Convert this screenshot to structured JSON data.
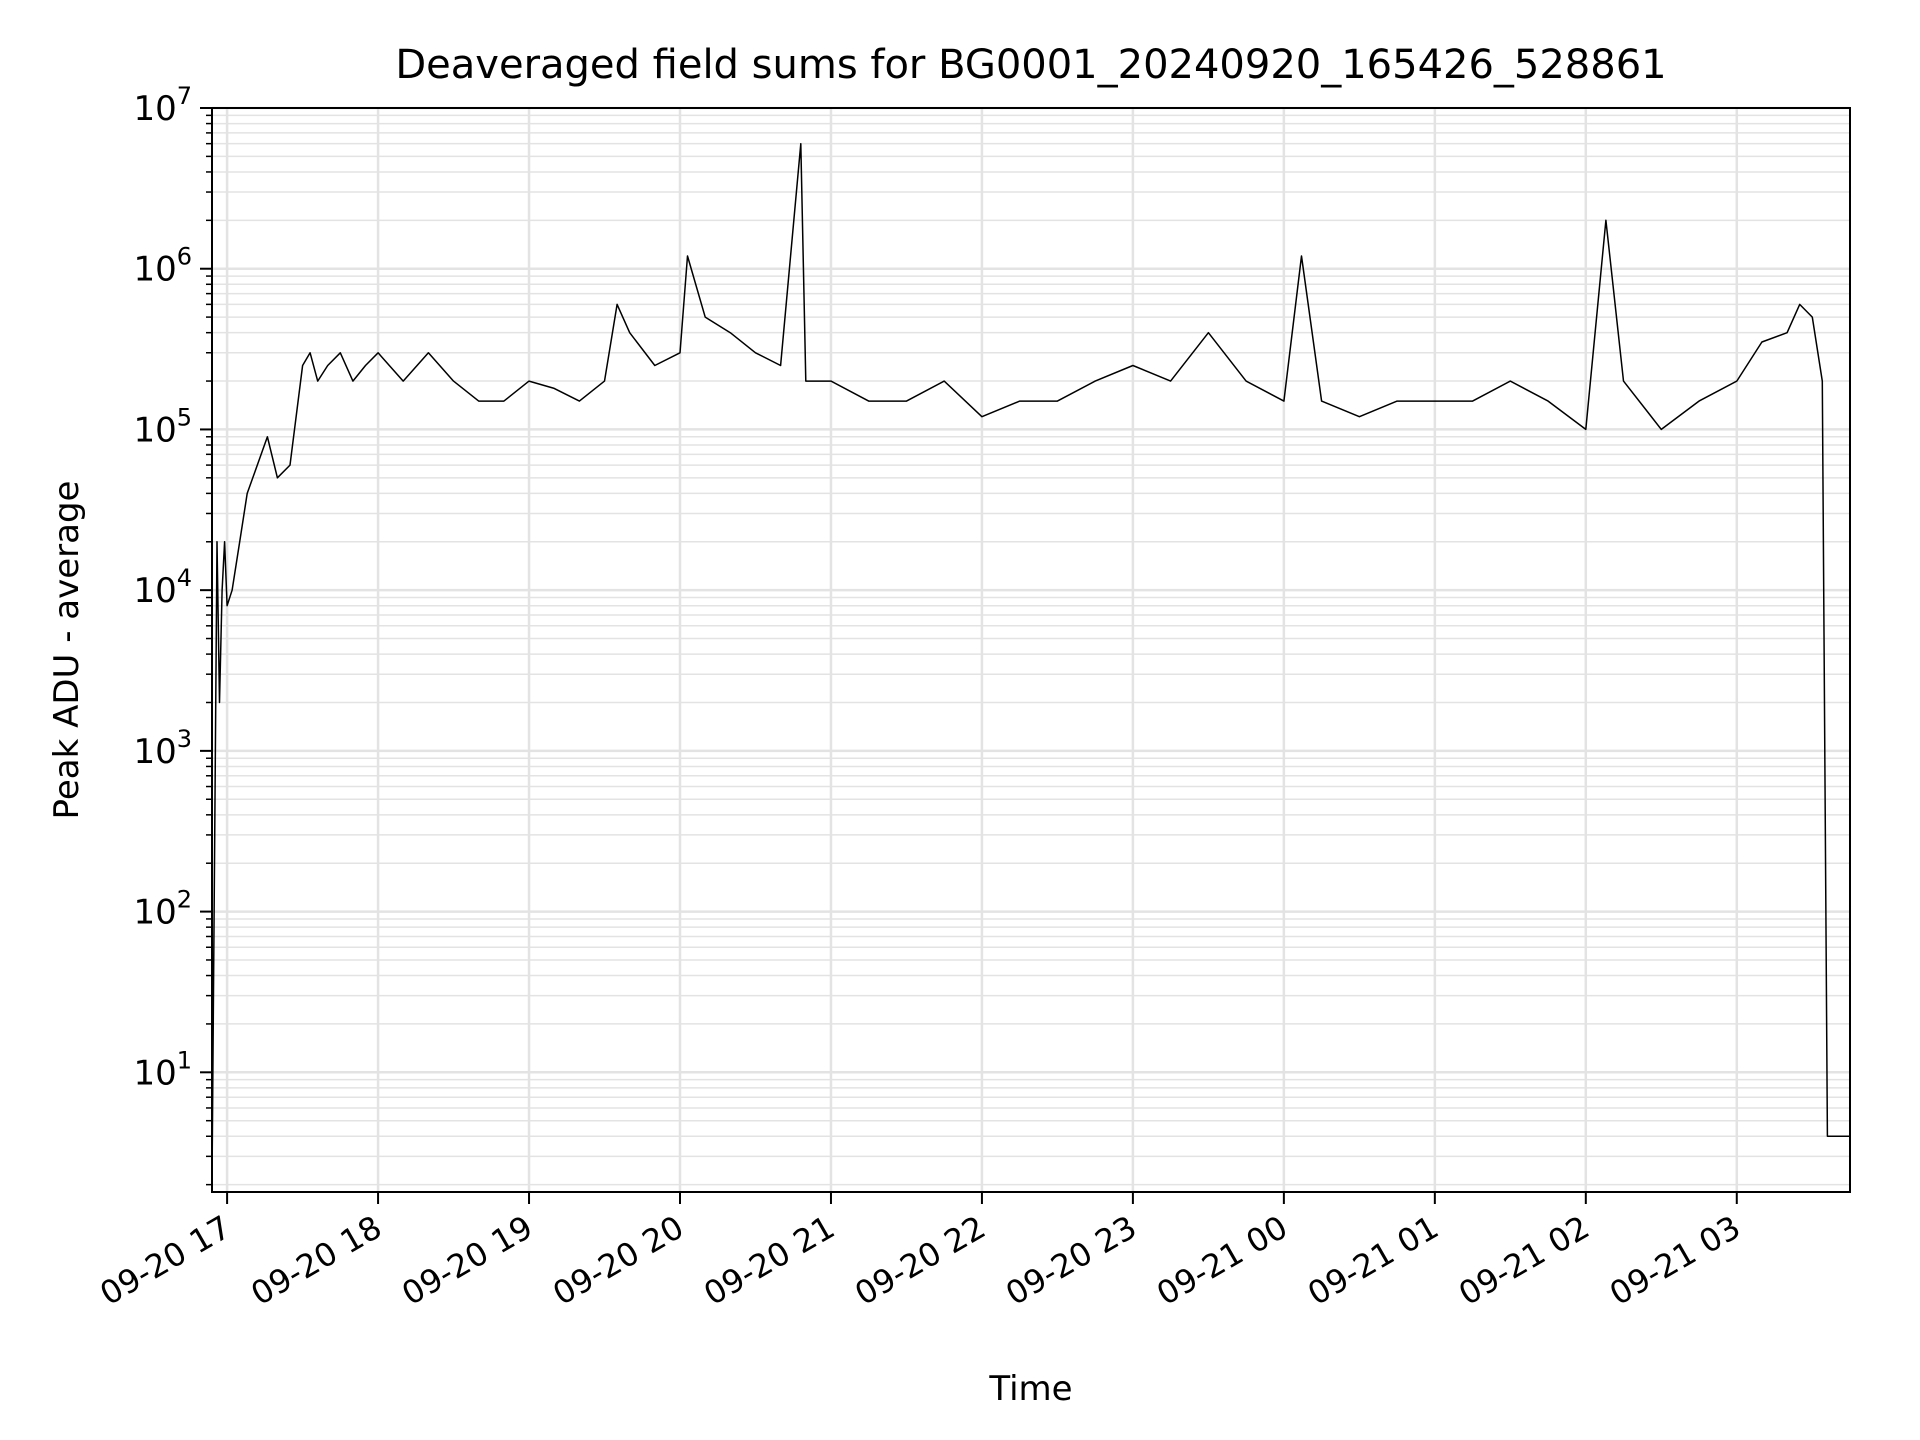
{
  "chart_data": {
    "type": "line",
    "title": "Deaveraged field sums for BG0001_20240920_165426_528861",
    "xlabel": "Time",
    "ylabel": "Peak ADU - average",
    "yscale": "log",
    "ylim": [
      1.8,
      10000000
    ],
    "xlim": [
      "2024-09-20 16:54",
      "2024-09-21 03:45"
    ],
    "grid": "both (major and minor)",
    "line_color": "#000000",
    "grid_color": "#e3e3e3",
    "x_ticks": [
      "2024-09-20 17:00",
      "2024-09-20 18:00",
      "2024-09-20 19:00",
      "2024-09-20 20:00",
      "2024-09-20 21:00",
      "2024-09-20 22:00",
      "2024-09-20 23:00",
      "2024-09-21 00:00",
      "2024-09-21 01:00",
      "2024-09-21 02:00",
      "2024-09-21 03:00"
    ],
    "x_tick_labels": [
      "09-20 17",
      "09-20 18",
      "09-20 19",
      "09-20 20",
      "09-20 21",
      "09-20 22",
      "09-20 23",
      "09-21 00",
      "09-21 01",
      "09-21 02",
      "09-21 03"
    ],
    "y_ticks": [
      10,
      100,
      1000,
      10000,
      100000,
      1000000,
      10000000
    ],
    "y_tick_labels": [
      {
        "base": "10",
        "exp": "1"
      },
      {
        "base": "10",
        "exp": "2"
      },
      {
        "base": "10",
        "exp": "3"
      },
      {
        "base": "10",
        "exp": "4"
      },
      {
        "base": "10",
        "exp": "5"
      },
      {
        "base": "10",
        "exp": "6"
      },
      {
        "base": "10",
        "exp": "7"
      }
    ],
    "series": [
      {
        "values_note": "",
        "x": [
          "2024-09-20 16:54",
          "2024-09-20 16:56",
          "2024-09-20 16:57",
          "2024-09-20 16:58",
          "2024-09-20 16:59",
          "2024-09-20 17:00",
          "2024-09-20 17:02",
          "2024-09-20 17:05",
          "2024-09-20 17:08",
          "2024-09-20 17:12",
          "2024-09-20 17:16",
          "2024-09-20 17:20",
          "2024-09-20 17:25",
          "2024-09-20 17:30",
          "2024-09-20 17:33",
          "2024-09-20 17:36",
          "2024-09-20 17:40",
          "2024-09-20 17:45",
          "2024-09-20 17:50",
          "2024-09-20 17:55",
          "2024-09-20 18:00",
          "2024-09-20 18:10",
          "2024-09-20 18:20",
          "2024-09-20 18:30",
          "2024-09-20 18:40",
          "2024-09-20 18:50",
          "2024-09-20 19:00",
          "2024-09-20 19:10",
          "2024-09-20 19:20",
          "2024-09-20 19:30",
          "2024-09-20 19:35",
          "2024-09-20 19:40",
          "2024-09-20 19:50",
          "2024-09-20 20:00",
          "2024-09-20 20:03",
          "2024-09-20 20:10",
          "2024-09-20 20:20",
          "2024-09-20 20:30",
          "2024-09-20 20:40",
          "2024-09-20 20:48",
          "2024-09-20 20:50",
          "2024-09-20 21:00",
          "2024-09-20 21:15",
          "2024-09-20 21:30",
          "2024-09-20 21:45",
          "2024-09-20 22:00",
          "2024-09-20 22:15",
          "2024-09-20 22:30",
          "2024-09-20 22:45",
          "2024-09-20 23:00",
          "2024-09-20 23:15",
          "2024-09-20 23:30",
          "2024-09-20 23:45",
          "2024-09-21 00:00",
          "2024-09-21 00:07",
          "2024-09-21 00:15",
          "2024-09-21 00:30",
          "2024-09-21 00:45",
          "2024-09-21 01:00",
          "2024-09-21 01:15",
          "2024-09-21 01:30",
          "2024-09-21 01:45",
          "2024-09-21 02:00",
          "2024-09-21 02:08",
          "2024-09-21 02:15",
          "2024-09-21 02:30",
          "2024-09-21 02:45",
          "2024-09-21 03:00",
          "2024-09-21 03:10",
          "2024-09-21 03:20",
          "2024-09-21 03:25",
          "2024-09-21 03:30",
          "2024-09-21 03:34",
          "2024-09-21 03:36",
          "2024-09-21 03:45"
        ],
        "y": [
          2,
          20000,
          2000,
          10000,
          20000,
          8000,
          10000,
          20000,
          40000,
          60000,
          90000,
          50000,
          60000,
          250000,
          300000,
          200000,
          250000,
          300000,
          200000,
          250000,
          300000,
          200000,
          300000,
          200000,
          150000,
          150000,
          200000,
          180000,
          150000,
          200000,
          600000,
          400000,
          250000,
          300000,
          1200000,
          500000,
          400000,
          300000,
          250000,
          6000000,
          200000,
          200000,
          150000,
          150000,
          200000,
          120000,
          150000,
          150000,
          200000,
          250000,
          200000,
          400000,
          200000,
          150000,
          1200000,
          150000,
          120000,
          150000,
          150000,
          150000,
          200000,
          150000,
          100000,
          2000000,
          200000,
          100000,
          150000,
          200000,
          350000,
          400000,
          600000,
          500000,
          200000,
          4,
          4
        ]
      }
    ]
  }
}
